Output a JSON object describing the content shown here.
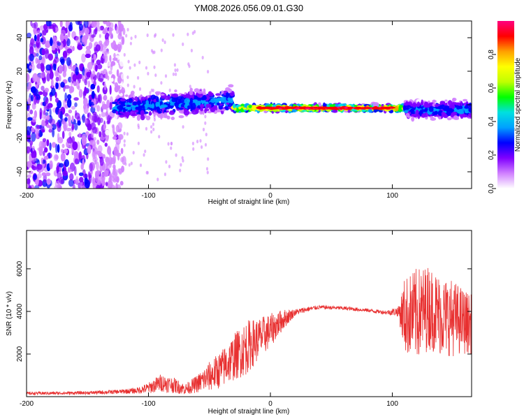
{
  "title": "YM08.2026.056.09.01.G30",
  "chart_data": [
    {
      "type": "heatmap",
      "name": "spectrogram",
      "xlabel": "Height of straight line (km)",
      "ylabel": "Frequency (Hz)",
      "xlim": [
        -200,
        165
      ],
      "ylim": [
        -50,
        50
      ],
      "xticks": [
        -200,
        -100,
        0,
        100
      ],
      "xtick_labels": [
        "-200",
        "-100",
        "0",
        "100"
      ],
      "yticks": [
        -40,
        -20,
        0,
        20,
        40
      ],
      "ytick_labels": [
        "-40",
        "-20",
        "0",
        "20",
        "40"
      ],
      "colorbar": {
        "label": "Normalized spectral amplitude",
        "range": [
          0,
          1
        ],
        "ticks": [
          0,
          0.2,
          0.4,
          0.6,
          0.8
        ],
        "tick_labels": [
          "0.0",
          "0.2",
          "0.4",
          "0.6",
          "0.8"
        ],
        "colors": [
          "#ffffff",
          "#d080ff",
          "#8000ff",
          "#0000ff",
          "#00a0ff",
          "#00e0e0",
          "#00ff00",
          "#c0ff00",
          "#ffff00",
          "#ffa000",
          "#ff0000",
          "#ff0080"
        ]
      },
      "features": [
        {
          "x_range": [
            -200,
            -120
          ],
          "freq_center": 0,
          "freq_spread": 50,
          "amplitude": 0.15,
          "description": "broadband noise"
        },
        {
          "x_range": [
            -128,
            -30
          ],
          "freq_center": [
            -2,
            3
          ],
          "freq_spread": 6,
          "amplitude": 0.35
        },
        {
          "x_range": [
            -30,
            110
          ],
          "freq_center": -2,
          "freq_spread": 1.5,
          "amplitude": 0.85
        },
        {
          "x_range": [
            110,
            165
          ],
          "freq_center": -3,
          "freq_spread": 4,
          "amplitude": 0.35
        }
      ]
    },
    {
      "type": "line",
      "name": "snr",
      "xlabel": "Height of straight line (km)",
      "ylabel": "SNR (10 * v/v)",
      "xlim": [
        -200,
        165
      ],
      "ylim": [
        0,
        7800
      ],
      "xticks": [
        -200,
        -100,
        0,
        100
      ],
      "xtick_labels": [
        "-200",
        "-100",
        "0",
        "100"
      ],
      "yticks": [
        2000,
        4000,
        6000
      ],
      "ytick_labels": [
        "2000",
        "4000",
        "6000"
      ],
      "color": "#e83030",
      "series": [
        {
          "name": "SNR",
          "x": [
            -200,
            -150,
            -125,
            -110,
            -100,
            -90,
            -80,
            -70,
            -60,
            -50,
            -40,
            -30,
            -20,
            -10,
            0,
            10,
            20,
            30,
            40,
            60,
            80,
            95,
            105,
            110,
            120,
            130,
            140,
            150,
            160,
            165
          ],
          "y": [
            150,
            180,
            230,
            280,
            400,
            650,
            550,
            350,
            600,
            950,
            1300,
            1850,
            2300,
            2700,
            3100,
            3600,
            3950,
            4100,
            4200,
            4150,
            4050,
            3950,
            4000,
            3800,
            3850,
            4200,
            3800,
            3700,
            3500,
            3400
          ],
          "spread": [
            70,
            80,
            100,
            140,
            260,
            420,
            380,
            250,
            420,
            700,
            900,
            1100,
            1300,
            1000,
            800,
            500,
            160,
            120,
            90,
            90,
            90,
            90,
            250,
            1800,
            2200,
            2000,
            1900,
            1800,
            1500,
            1400
          ]
        }
      ]
    }
  ]
}
